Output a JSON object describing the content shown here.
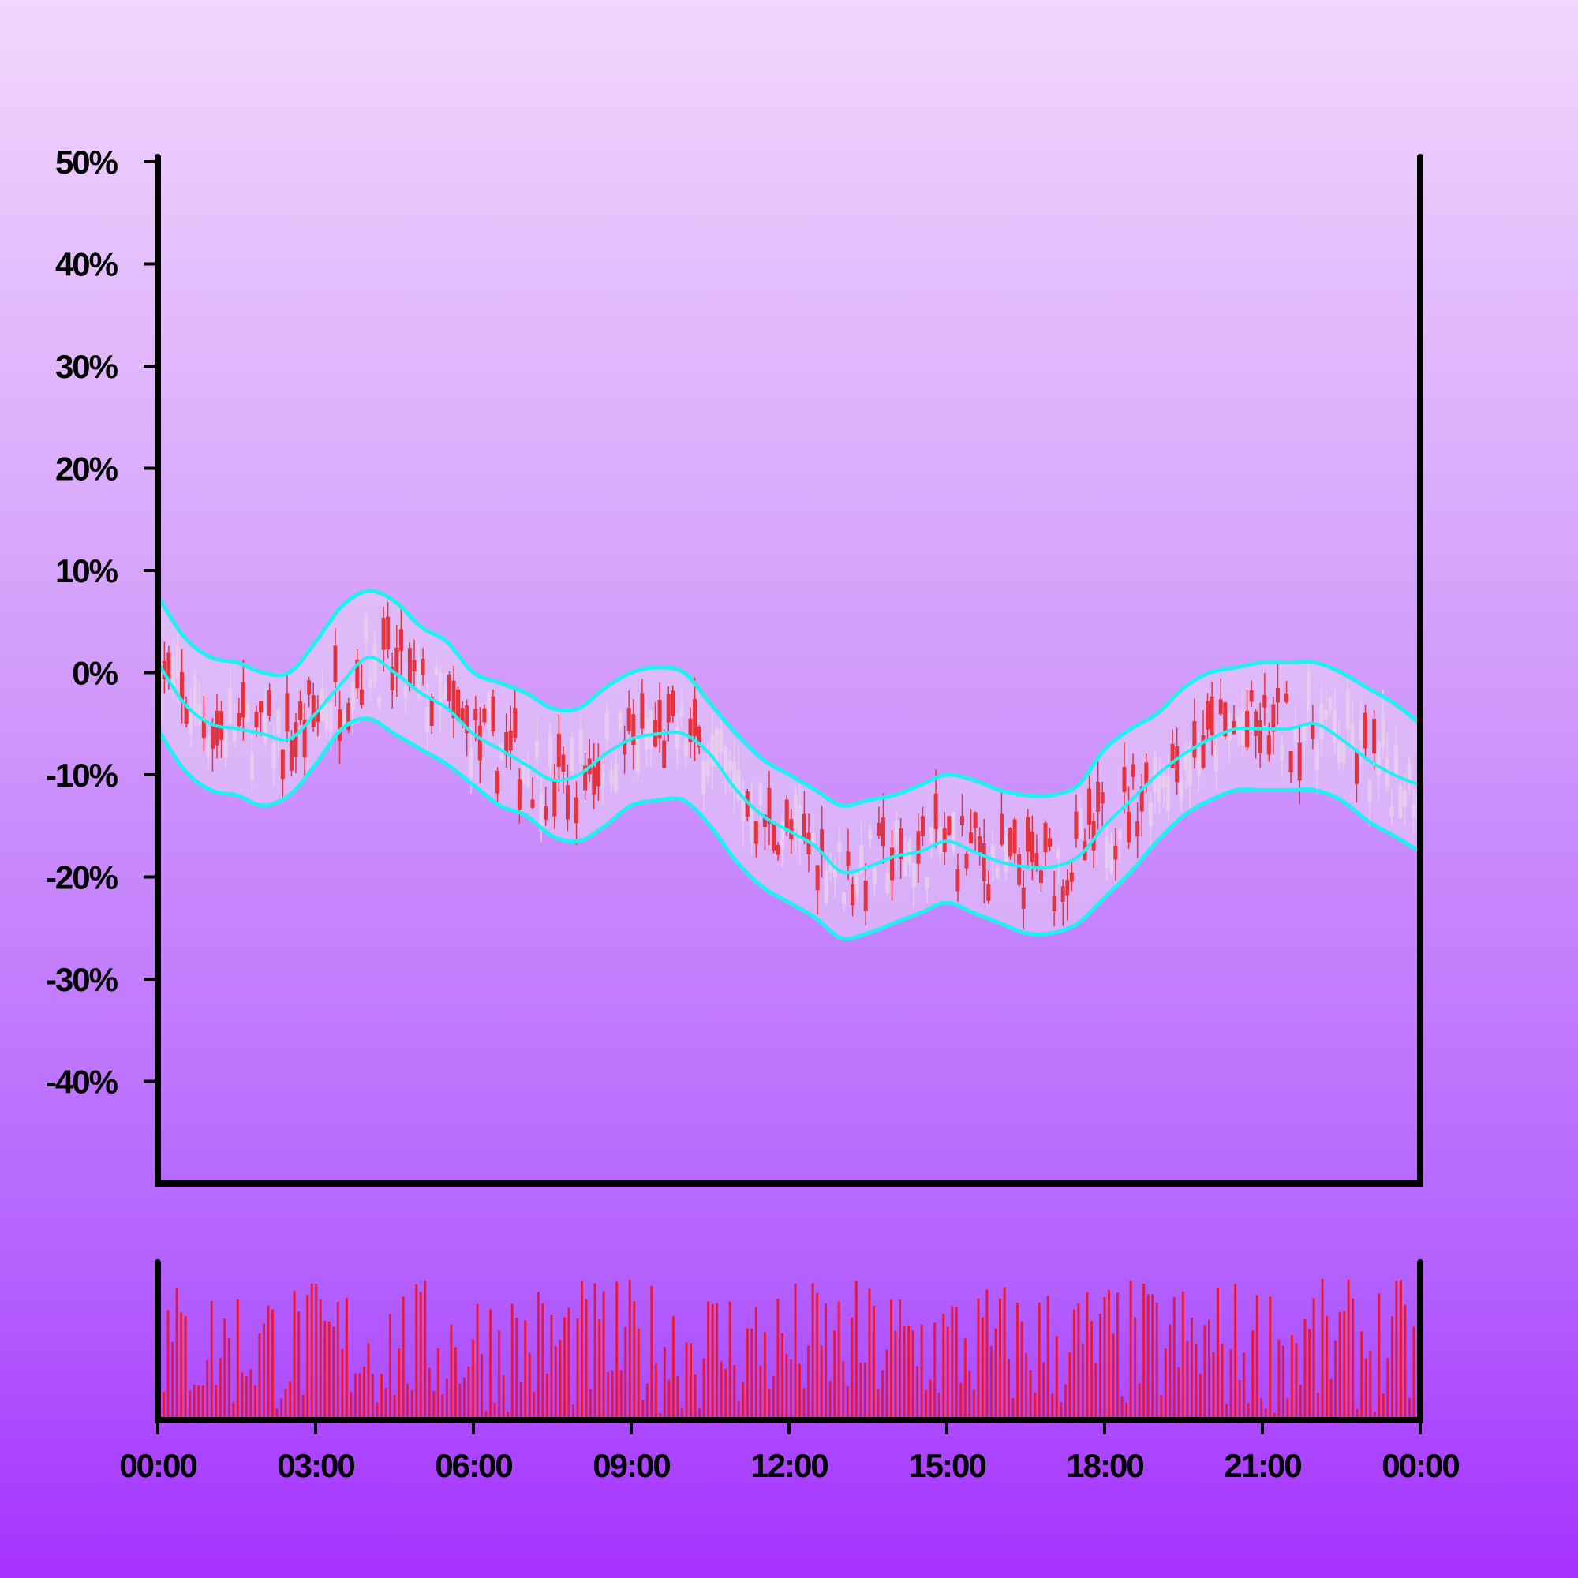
{
  "chart_data": {
    "type": "candlestick",
    "title": "",
    "xlabel": "",
    "ylabel": "",
    "ylim": [
      -50,
      50
    ],
    "y_ticks": [
      "50%",
      "40%",
      "30%",
      "20%",
      "10%",
      "0%",
      "-10%",
      "-20%",
      "-30%",
      "-40%"
    ],
    "y_tick_values": [
      50,
      40,
      30,
      20,
      10,
      0,
      -10,
      -20,
      -30,
      -40
    ],
    "x_ticks": [
      "00:00",
      "03:00",
      "06:00",
      "09:00",
      "12:00",
      "15:00",
      "18:00",
      "21:00",
      "00:00"
    ],
    "x_range_hours": [
      0,
      24
    ],
    "bollinger_middle": {
      "hours": [
        0,
        0.5,
        1,
        1.5,
        2,
        2.5,
        3,
        3.5,
        4,
        4.5,
        5,
        5.5,
        6,
        6.5,
        7,
        7.5,
        8,
        8.5,
        9,
        9.5,
        10,
        10.5,
        11,
        11.5,
        12,
        12.5,
        13,
        13.5,
        14,
        14.5,
        15,
        15.5,
        16,
        16.5,
        17,
        17.5,
        18,
        18.5,
        19,
        19.5,
        20,
        20.5,
        21,
        21.5,
        22,
        22.5,
        23,
        23.5,
        24
      ],
      "values": [
        1,
        -3,
        -5,
        -5.5,
        -6,
        -6.5,
        -4,
        -1,
        1.5,
        0,
        -2,
        -3.5,
        -6,
        -7.5,
        -9,
        -10.5,
        -10,
        -8,
        -6.5,
        -6,
        -6,
        -8,
        -11.5,
        -14,
        -15.5,
        -17,
        -19.5,
        -19,
        -18,
        -17.5,
        -16.5,
        -17.5,
        -18.5,
        -19,
        -19,
        -18,
        -15,
        -12.5,
        -10,
        -8,
        -6.5,
        -5.5,
        -5.5,
        -5.5,
        -5,
        -6.5,
        -8.5,
        -10,
        -11
      ]
    },
    "bollinger_upper": {
      "hours": [
        0,
        0.5,
        1,
        1.5,
        2,
        2.5,
        3,
        3.5,
        4,
        4.5,
        5,
        5.5,
        6,
        6.5,
        7,
        7.5,
        8,
        8.5,
        9,
        9.5,
        10,
        10.5,
        11,
        11.5,
        12,
        12.5,
        13,
        13.5,
        14,
        14.5,
        15,
        15.5,
        16,
        16.5,
        17,
        17.5,
        18,
        18.5,
        19,
        19.5,
        20,
        20.5,
        21,
        21.5,
        22,
        22.5,
        23,
        23.5,
        24
      ],
      "values": [
        7.5,
        3.5,
        1.5,
        1,
        0,
        0,
        3,
        6.5,
        8,
        7,
        4.5,
        3,
        0,
        -1,
        -2,
        -3.5,
        -3.5,
        -1.5,
        0,
        0.5,
        0,
        -3,
        -6,
        -8.5,
        -10,
        -11.5,
        -13,
        -12.5,
        -12,
        -11,
        -10,
        -10.5,
        -11.5,
        -12,
        -12,
        -11,
        -7.5,
        -5.5,
        -4,
        -1.5,
        0,
        0.5,
        1,
        1,
        1,
        0,
        -1.5,
        -3,
        -5
      ]
    },
    "bollinger_lower": {
      "hours": [
        0,
        0.5,
        1,
        1.5,
        2,
        2.5,
        3,
        3.5,
        4,
        4.5,
        5,
        5.5,
        6,
        6.5,
        7,
        7.5,
        8,
        8.5,
        9,
        9.5,
        10,
        10.5,
        11,
        11.5,
        12,
        12.5,
        13,
        13.5,
        14,
        14.5,
        15,
        15.5,
        16,
        16.5,
        17,
        17.5,
        18,
        18.5,
        19,
        19.5,
        20,
        20.5,
        21,
        21.5,
        22,
        22.5,
        23,
        23.5,
        24
      ],
      "values": [
        -5.5,
        -9.5,
        -11.5,
        -12,
        -13,
        -12,
        -9,
        -5.5,
        -4.5,
        -6,
        -7.5,
        -9,
        -11,
        -13,
        -14,
        -16,
        -16.5,
        -15,
        -13,
        -12.5,
        -12.5,
        -15,
        -18.5,
        -21,
        -22.5,
        -24,
        -26,
        -25.5,
        -24.5,
        -23.5,
        -22.5,
        -23.5,
        -24.5,
        -25.5,
        -25.5,
        -24.5,
        -22,
        -19.5,
        -16.5,
        -14,
        -12.5,
        -11.5,
        -11.5,
        -11.5,
        -11.5,
        -12.5,
        -14.5,
        -16,
        -17.5
      ]
    },
    "candle_colors": {
      "up": "#e6323c",
      "down": "#e8ccf0"
    },
    "band_line_color": "#21f0f0",
    "band_fill_color": "#ead2f5",
    "volume_color": "#e6193c",
    "axis_color": "#000000"
  }
}
